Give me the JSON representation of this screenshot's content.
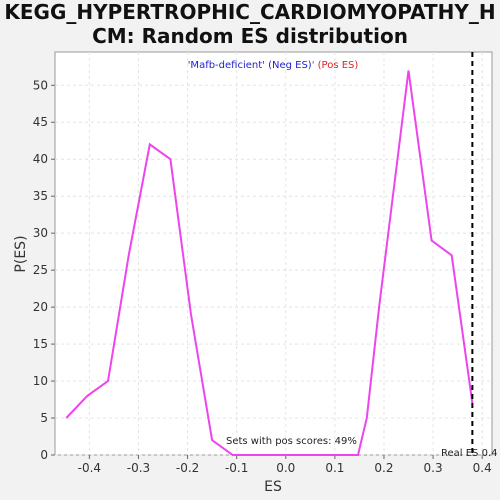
{
  "chart_data": {
    "type": "line",
    "title_line1": "KEGG_HYPERTROPHIC_CARDIOMYOPATHY_H",
    "title_line2": "CM: Random ES distribution",
    "xlabel": "ES",
    "ylabel": "P(ES)",
    "xlim": [
      -0.47,
      0.42
    ],
    "ylim": [
      0,
      54.5
    ],
    "xticks": [
      -0.4,
      -0.3,
      -0.2,
      -0.1,
      0.0,
      0.1,
      0.2,
      0.3,
      0.4
    ],
    "xtick_labels": [
      "-0.4",
      "-0.3",
      "-0.2",
      "-0.1",
      "0.0",
      "0.1",
      "0.2",
      "0.3",
      "0.4"
    ],
    "yticks": [
      0,
      5,
      10,
      15,
      20,
      25,
      30,
      35,
      40,
      45,
      50
    ],
    "ytick_labels": [
      "0",
      "5",
      "10",
      "15",
      "20",
      "25",
      "30",
      "35",
      "40",
      "45",
      "50"
    ],
    "grid": true,
    "series": [
      {
        "color": "#ee44ee",
        "x": [
          -0.447,
          -0.404,
          -0.362,
          -0.32,
          -0.277,
          -0.235,
          -0.193,
          -0.15,
          -0.108,
          -0.065,
          -0.023,
          0.02,
          0.062,
          0.105,
          0.147,
          0.165,
          0.19,
          0.25,
          0.297,
          0.338,
          0.38
        ],
        "y": [
          5,
          8,
          10,
          27,
          42,
          40,
          19,
          2,
          0,
          0,
          0,
          0,
          0,
          0,
          0,
          5,
          20,
          52,
          29,
          27,
          7
        ]
      }
    ],
    "legend": {
      "neg_label": "'Mafb-deficient' (Neg ES)",
      "sep": "' ",
      "pos_label": "(Pos ES)",
      "neg_color": "#2222cc",
      "pos_color": "#dd2222"
    },
    "real_es": {
      "x": 0.38,
      "label": "Real ES 0.4"
    },
    "annotation": "Sets with pos scores: 49%"
  }
}
